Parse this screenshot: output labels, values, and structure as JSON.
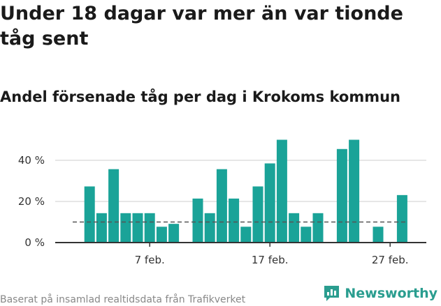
{
  "title": "Under 18 dagar var mer än var tionde tåg sent",
  "subtitle": "Andel försenade tåg per dag i Krokoms kommun",
  "source": "Baserat på insamlad realtidsdata från Trafikverket",
  "brand": {
    "name": "Newsworthy",
    "icon": "newsworthy-logo-icon",
    "color": "#2a9d8f"
  },
  "colors": {
    "bar": "#1aa398",
    "reference_line": "#555555",
    "grid": "#dddddd",
    "axis": "#333333"
  },
  "chart_data": {
    "type": "bar",
    "title": "Under 18 dagar var mer än var tionde tåg sent",
    "subtitle": "Andel försenade tåg per dag i Krokoms kommun",
    "x_unit": "day",
    "x": [
      "2/1",
      "2/2",
      "2/3",
      "2/4",
      "2/5",
      "2/6",
      "2/7",
      "2/8",
      "2/9",
      "2/10",
      "2/11",
      "2/12",
      "2/13",
      "2/14",
      "2/15",
      "2/16",
      "2/17",
      "2/18",
      "2/19",
      "2/20",
      "2/21",
      "2/22",
      "2/23",
      "2/24",
      "2/25",
      "2/26",
      "2/27",
      "2/28",
      "3/1"
    ],
    "values": [
      null,
      27.3,
      14.3,
      35.7,
      14.3,
      14.3,
      14.3,
      7.7,
      9.1,
      null,
      21.4,
      14.3,
      35.7,
      21.4,
      7.7,
      27.3,
      38.5,
      50,
      14.3,
      7.7,
      14.3,
      null,
      45.5,
      50,
      null,
      7.7,
      null,
      23.1,
      null
    ],
    "reference_line": 10,
    "y_ticks": [
      0,
      20,
      40
    ],
    "y_tick_labels": [
      "0 %",
      "20 %",
      "40 %"
    ],
    "x_ticks": [
      "2/7",
      "2/17",
      "2/27"
    ],
    "x_tick_labels": [
      "7 feb.",
      "17 feb.",
      "27 feb."
    ],
    "ylim": [
      0,
      53
    ],
    "grid": true,
    "legend": "none"
  }
}
